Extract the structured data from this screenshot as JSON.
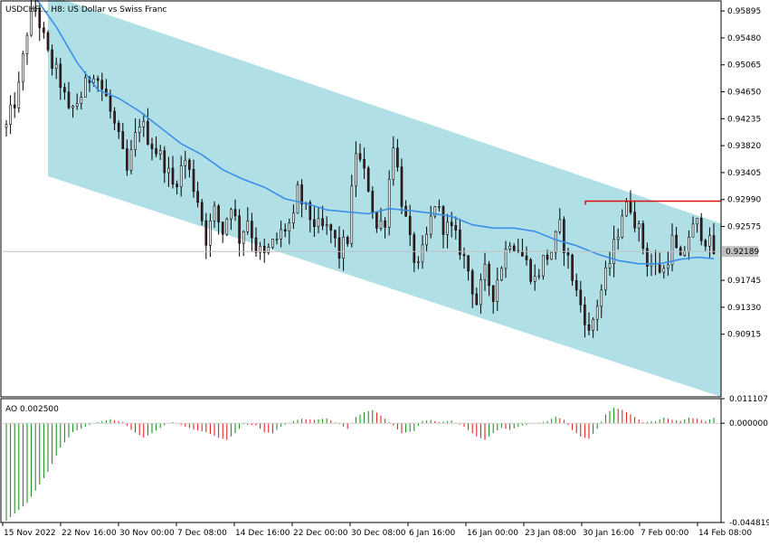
{
  "window": {
    "title": "USDCHF..., H8:  US Dollar vs Swiss Franc"
  },
  "colors": {
    "bull_candle": "#ffffff",
    "bear_candle": "#4a1f1f",
    "channel_fill": "#b0e0e6",
    "moving_average": "#3c8fe8",
    "resistance_line": "#e01010",
    "current_price_label_bg": "#c0c0c0",
    "ao_up": "#0a8a0a",
    "ao_down": "#e01010"
  },
  "chart_data": [
    {
      "type": "candlestick",
      "title": "USDCHF..., H8:  US Dollar vs Swiss Franc",
      "ylim": [
        0.8995,
        0.9605
      ],
      "y_ticks": [
        "0.95895",
        "0.95480",
        "0.95065",
        "0.94650",
        "0.94235",
        "0.93820",
        "0.93405",
        "0.92990",
        "0.92575",
        "0.92160",
        "0.91745",
        "0.91330",
        "0.90915"
      ],
      "x_ticks": [
        "15 Nov 2022",
        "22 Nov 16:00",
        "30 Nov 00:00",
        "7 Dec 08:00",
        "14 Dec 16:00",
        "22 Dec 00:00",
        "30 Dec 08:00",
        "6 Jan 16:00",
        "16 Jan 00:00",
        "23 Jan 08:00",
        "30 Jan 16:00",
        "7 Feb 00:00",
        "14 Feb 08:00"
      ],
      "current_price_label": "0.92189",
      "current_price": 0.92189,
      "resistance_level": 0.92965,
      "price_path": [
        [
          0,
          0.941
        ],
        [
          6,
          0.947
        ],
        [
          10,
          0.956
        ],
        [
          14,
          0.9595
        ],
        [
          20,
          0.952
        ],
        [
          26,
          0.948
        ],
        [
          30,
          0.943
        ],
        [
          36,
          0.946
        ],
        [
          42,
          0.95
        ],
        [
          48,
          0.9455
        ],
        [
          54,
          0.939
        ],
        [
          58,
          0.934
        ],
        [
          64,
          0.942
        ],
        [
          70,
          0.9385
        ],
        [
          76,
          0.9355
        ],
        [
          80,
          0.932
        ],
        [
          86,
          0.936
        ],
        [
          92,
          0.93
        ],
        [
          96,
          0.924
        ],
        [
          100,
          0.928
        ],
        [
          104,
          0.925
        ],
        [
          108,
          0.9295
        ],
        [
          112,
          0.924
        ],
        [
          116,
          0.927
        ],
        [
          120,
          0.9225
        ],
        [
          124,
          0.921
        ],
        [
          128,
          0.923
        ],
        [
          134,
          0.9255
        ],
        [
          138,
          0.9265
        ],
        [
          140,
          0.931
        ],
        [
          144,
          0.928
        ],
        [
          150,
          0.9255
        ],
        [
          156,
          0.925
        ],
        [
          160,
          0.9215
        ],
        [
          164,
          0.924
        ],
        [
          168,
          0.9375
        ],
        [
          170,
          0.9355
        ],
        [
          174,
          0.932
        ],
        [
          178,
          0.9255
        ],
        [
          182,
          0.927
        ],
        [
          186,
          0.939
        ],
        [
          190,
          0.93
        ],
        [
          194,
          0.923
        ],
        [
          198,
          0.919
        ],
        [
          202,
          0.924
        ],
        [
          206,
          0.9295
        ],
        [
          210,
          0.926
        ],
        [
          214,
          0.925
        ],
        [
          218,
          0.9225
        ],
        [
          222,
          0.919
        ],
        [
          226,
          0.914
        ],
        [
          230,
          0.9185
        ],
        [
          234,
          0.9155
        ],
        [
          238,
          0.92
        ],
        [
          242,
          0.924
        ],
        [
          246,
          0.9225
        ],
        [
          250,
          0.92
        ],
        [
          254,
          0.9175
        ],
        [
          258,
          0.9205
        ],
        [
          262,
          0.922
        ],
        [
          266,
          0.9255
        ],
        [
          270,
          0.9205
        ],
        [
          274,
          0.9155
        ],
        [
          278,
          0.912
        ],
        [
          280,
          0.909
        ],
        [
          284,
          0.914
        ],
        [
          288,
          0.918
        ],
        [
          292,
          0.9225
        ],
        [
          296,
          0.928
        ],
        [
          300,
          0.929
        ],
        [
          304,
          0.925
        ],
        [
          308,
          0.9205
        ],
        [
          312,
          0.9195
        ],
        [
          316,
          0.919
        ],
        [
          320,
          0.9235
        ],
        [
          324,
          0.92
        ],
        [
          328,
          0.9245
        ],
        [
          332,
          0.926
        ],
        [
          336,
          0.924
        ],
        [
          340,
          0.9218
        ]
      ],
      "ma_path": [
        [
          0,
          0.961
        ],
        [
          14,
          0.961
        ],
        [
          24,
          0.9565
        ],
        [
          34,
          0.951
        ],
        [
          44,
          0.9468
        ],
        [
          54,
          0.9455
        ],
        [
          64,
          0.9435
        ],
        [
          74,
          0.941
        ],
        [
          84,
          0.9385
        ],
        [
          94,
          0.9368
        ],
        [
          104,
          0.9345
        ],
        [
          114,
          0.933
        ],
        [
          124,
          0.9318
        ],
        [
          134,
          0.93
        ],
        [
          144,
          0.9293
        ],
        [
          154,
          0.9283
        ],
        [
          164,
          0.928
        ],
        [
          174,
          0.9277
        ],
        [
          184,
          0.9285
        ],
        [
          194,
          0.9282
        ],
        [
          204,
          0.9278
        ],
        [
          214,
          0.9273
        ],
        [
          224,
          0.926
        ],
        [
          234,
          0.9255
        ],
        [
          244,
          0.9255
        ],
        [
          254,
          0.925
        ],
        [
          264,
          0.9237
        ],
        [
          274,
          0.9228
        ],
        [
          284,
          0.9215
        ],
        [
          294,
          0.9205
        ],
        [
          304,
          0.92
        ],
        [
          314,
          0.92
        ],
        [
          324,
          0.9207
        ],
        [
          332,
          0.921
        ],
        [
          340,
          0.9208
        ]
      ]
    },
    {
      "type": "bar",
      "title": "AO 0.002500",
      "ylim": [
        -0.044819,
        0.011107
      ],
      "y_ticks": [
        "0.011107",
        "0.000000",
        "-0.044819"
      ],
      "envelope": [
        [
          0,
          -0.044
        ],
        [
          10,
          -0.036
        ],
        [
          20,
          -0.022
        ],
        [
          26,
          -0.011
        ],
        [
          32,
          -0.004
        ],
        [
          38,
          -0.0015
        ],
        [
          44,
          0.0005
        ],
        [
          50,
          0.0018
        ],
        [
          56,
          0.0006
        ],
        [
          60,
          -0.003
        ],
        [
          66,
          -0.0065
        ],
        [
          70,
          -0.0045
        ],
        [
          76,
          -0.001
        ],
        [
          80,
          0.0005
        ],
        [
          86,
          -0.0015
        ],
        [
          90,
          -0.0028
        ],
        [
          96,
          -0.004
        ],
        [
          102,
          -0.0065
        ],
        [
          106,
          -0.0075
        ],
        [
          110,
          -0.0045
        ],
        [
          114,
          -0.0005
        ],
        [
          120,
          -0.001
        ],
        [
          124,
          -0.004
        ],
        [
          128,
          -0.0045
        ],
        [
          132,
          -0.0015
        ],
        [
          138,
          0.001
        ],
        [
          142,
          0.002
        ],
        [
          148,
          0.0015
        ],
        [
          154,
          0.0022
        ],
        [
          160,
          -0.0005
        ],
        [
          164,
          -0.0025
        ],
        [
          168,
          0.0028
        ],
        [
          172,
          0.005
        ],
        [
          176,
          0.006
        ],
        [
          180,
          0.0035
        ],
        [
          186,
          -0.001
        ],
        [
          190,
          -0.0045
        ],
        [
          196,
          -0.0035
        ],
        [
          200,
          0.001
        ],
        [
          204,
          0.0015
        ],
        [
          208,
          0.0005
        ],
        [
          214,
          0.0012
        ],
        [
          220,
          -0.0015
        ],
        [
          226,
          -0.006
        ],
        [
          230,
          -0.0075
        ],
        [
          234,
          -0.0045
        ],
        [
          238,
          -0.002
        ],
        [
          242,
          -0.003
        ],
        [
          248,
          -0.001
        ],
        [
          254,
          0.0
        ],
        [
          260,
          0.001
        ],
        [
          264,
          0.003
        ],
        [
          268,
          0.0015
        ],
        [
          272,
          -0.003
        ],
        [
          276,
          -0.006
        ],
        [
          280,
          -0.007
        ],
        [
          284,
          -0.0025
        ],
        [
          288,
          0.004
        ],
        [
          292,
          0.007
        ],
        [
          296,
          0.006
        ],
        [
          300,
          0.004
        ],
        [
          306,
          0.0005
        ],
        [
          312,
          0.001
        ],
        [
          316,
          0.0025
        ],
        [
          320,
          0.0015
        ],
        [
          324,
          0.001
        ],
        [
          328,
          0.0025
        ],
        [
          332,
          0.002
        ],
        [
          336,
          0.001
        ],
        [
          340,
          0.0025
        ]
      ]
    }
  ]
}
